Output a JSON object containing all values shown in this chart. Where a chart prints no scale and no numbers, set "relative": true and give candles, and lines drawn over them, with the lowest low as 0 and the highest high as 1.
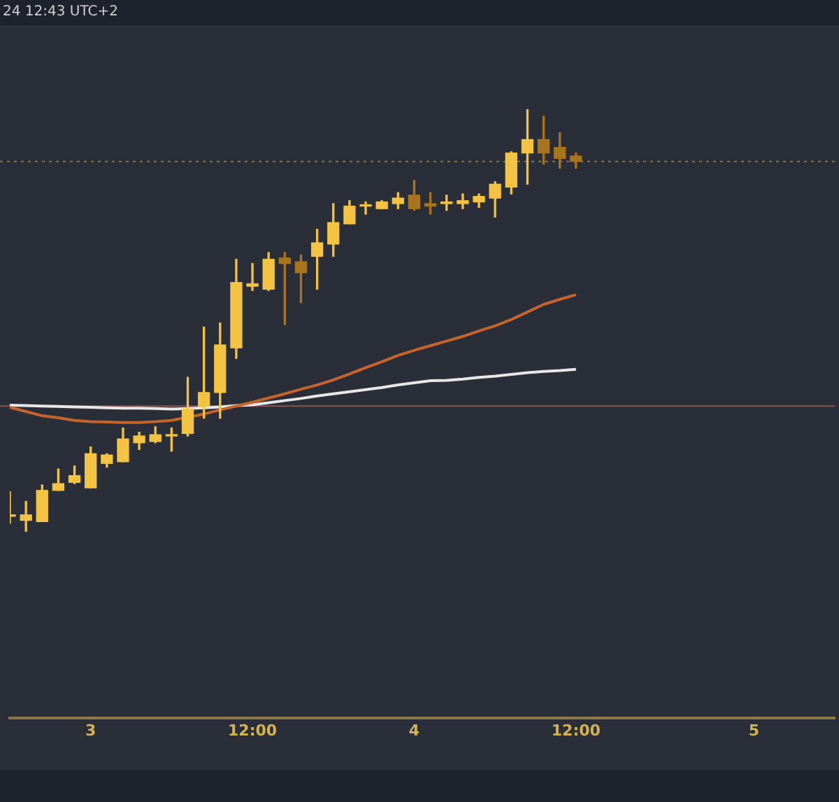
{
  "chart_data": {
    "type": "candlestick",
    "relative": true,
    "annotations": [
      "24 12:43 UTC+2"
    ],
    "categories": [
      null,
      null,
      null,
      null,
      null,
      "3",
      null,
      null,
      null,
      null,
      null,
      null,
      null,
      null,
      null,
      "12:00",
      null,
      null,
      null,
      null,
      null,
      null,
      null,
      null,
      null,
      "4",
      null,
      null,
      null,
      null,
      null,
      null,
      null,
      null,
      null,
      "12:00",
      null,
      null,
      null,
      null,
      null,
      null,
      null,
      null,
      null,
      null,
      "5",
      null,
      null,
      null,
      null,
      null
    ],
    "ohlc": [
      [
        0.039,
        0.094,
        0.019,
        0.039
      ],
      [
        0.026,
        0.071,
        0,
        0.039
      ],
      [
        0.023,
        0.11,
        0.023,
        0.097
      ],
      [
        0.097,
        0.148,
        0.097,
        0.113
      ],
      [
        0.116,
        0.155,
        0.113,
        0.132
      ],
      [
        0.103,
        0.2,
        0.103,
        0.184
      ],
      [
        0.161,
        0.184,
        0.152,
        0.181
      ],
      [
        0.165,
        0.245,
        0.165,
        0.219
      ],
      [
        0.21,
        0.235,
        0.194,
        0.226
      ],
      [
        0.213,
        0.248,
        0.21,
        0.229
      ],
      [
        0.226,
        0.245,
        0.19,
        0.229
      ],
      [
        0.232,
        0.365,
        0.226,
        0.29
      ],
      [
        0.297,
        0.484,
        0.268,
        0.329
      ],
      [
        0.329,
        0.494,
        0.268,
        0.442
      ],
      [
        0.435,
        0.645,
        0.41,
        0.59
      ],
      [
        0.581,
        0.635,
        0.571,
        0.587
      ],
      [
        0.574,
        0.661,
        0.571,
        0.645
      ],
      [
        0.648,
        0.661,
        0.49,
        0.635
      ],
      [
        0.639,
        0.655,
        0.542,
        0.613
      ],
      [
        0.652,
        0.716,
        0.574,
        0.684
      ],
      [
        0.681,
        0.777,
        0.652,
        0.732
      ],
      [
        0.729,
        0.784,
        0.729,
        0.771
      ],
      [
        0.771,
        0.781,
        0.752,
        0.774
      ],
      [
        0.765,
        0.784,
        0.765,
        0.781
      ],
      [
        0.777,
        0.803,
        0.765,
        0.79
      ],
      [
        0.797,
        0.832,
        0.761,
        0.765
      ],
      [
        0.777,
        0.803,
        0.752,
        0.771
      ],
      [
        0.777,
        0.797,
        0.761,
        0.781
      ],
      [
        0.777,
        0.8,
        0.765,
        0.784
      ],
      [
        0.781,
        0.8,
        0.768,
        0.794
      ],
      [
        0.79,
        0.829,
        0.745,
        0.823
      ],
      [
        0.816,
        0.9,
        0.8,
        0.897
      ],
      [
        0.897,
        1,
        0.823,
        0.929
      ],
      [
        0.929,
        0.984,
        0.871,
        0.897
      ],
      [
        0.91,
        0.945,
        0.861,
        0.884
      ],
      [
        0.89,
        0.897,
        0.861,
        0.877
      ],
      null,
      null,
      null,
      null,
      null,
      null,
      null,
      null,
      null,
      null,
      null,
      null,
      null,
      null,
      null,
      null
    ],
    "colors": [
      "#f5c342",
      "#f5c342",
      "#f5c342",
      "#f5c342",
      "#f5c342",
      "#f5c342",
      "#f5c342",
      "#f5c342",
      "#f5c342",
      "#f5c342",
      "#f5c342",
      "#f5c342",
      "#f5c342",
      "#f5c342",
      "#f5c342",
      "#f5c342",
      "#f5c342",
      "#a8741e",
      "#a8741e",
      "#f5c342",
      "#f5c342",
      "#f5c342",
      "#f5c342",
      "#f5c342",
      "#f5c342",
      "#a8741e",
      "#a8741e",
      "#f5c342",
      "#f5c342",
      "#f5c342",
      "#f5c342",
      "#f5c342",
      "#f5c342",
      "#a8741e",
      "#a8741e",
      "#a8741e",
      null,
      null,
      null,
      null,
      null,
      null,
      null,
      null,
      null,
      null,
      null,
      null,
      null,
      null,
      null,
      null
    ],
    "series": [
      {
        "type": "line",
        "color": "#c8642a",
        "values": [
          0.294,
          0.284,
          0.274,
          0.269,
          0.263,
          0.26,
          0.259,
          0.258,
          0.258,
          0.26,
          0.263,
          null,
          0.278,
          0.288,
          0.297,
          0.306,
          0.316,
          0.326,
          0.337,
          0.347,
          0.359,
          0.373,
          0.388,
          0.402,
          0.417,
          0.429,
          0.44,
          0.451,
          0.462,
          0.475,
          0.487,
          0.502,
          0.52,
          0.538,
          0.55,
          0.561,
          null,
          null,
          null,
          null,
          null,
          null,
          null,
          null,
          null,
          null,
          null,
          null,
          null,
          null,
          null,
          null
        ]
      },
      {
        "type": "line",
        "color": "#e8e8e8",
        "values": [
          0.299,
          0.298,
          0.297,
          0.296,
          0.295,
          0.294,
          0.293,
          0.292,
          0.292,
          0.291,
          0.29,
          0.291,
          0.293,
          0.295,
          0.298,
          0.3,
          0.305,
          0.31,
          0.315,
          0.321,
          0.326,
          0.331,
          0.336,
          0.341,
          0.347,
          0.352,
          0.357,
          0.358,
          0.361,
          0.365,
          0.368,
          0.372,
          0.376,
          0.379,
          0.381,
          0.384,
          null,
          null,
          null,
          null,
          null,
          null,
          null,
          null,
          null,
          null,
          null,
          null,
          null,
          null,
          null,
          null
        ]
      }
    ],
    "ref_lines": [
      {
        "axis": "y",
        "value": 0.877,
        "color": "#8a7a45",
        "line_style": "dotted"
      },
      {
        "axis": "y",
        "value": 0.297,
        "color": "#8a5550",
        "line_style": "solid"
      }
    ],
    "grid": false,
    "legend": false
  }
}
